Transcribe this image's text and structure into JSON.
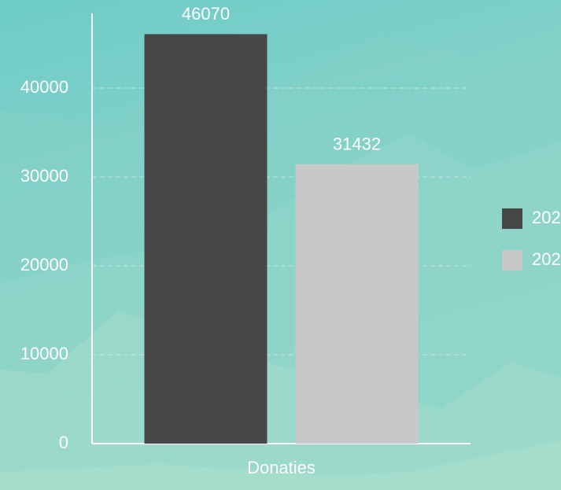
{
  "chart_data": {
    "type": "bar",
    "categories": [
      "Donaties"
    ],
    "series": [
      {
        "name": "202",
        "color": "#474747",
        "values": [
          46070
        ]
      },
      {
        "name": "202",
        "color": "#c8c8c8",
        "values": [
          31432
        ]
      }
    ],
    "ylim": [
      0,
      48000
    ],
    "yticks": [
      0,
      10000,
      20000,
      30000,
      40000
    ],
    "grid": true,
    "legend": "right"
  }
}
